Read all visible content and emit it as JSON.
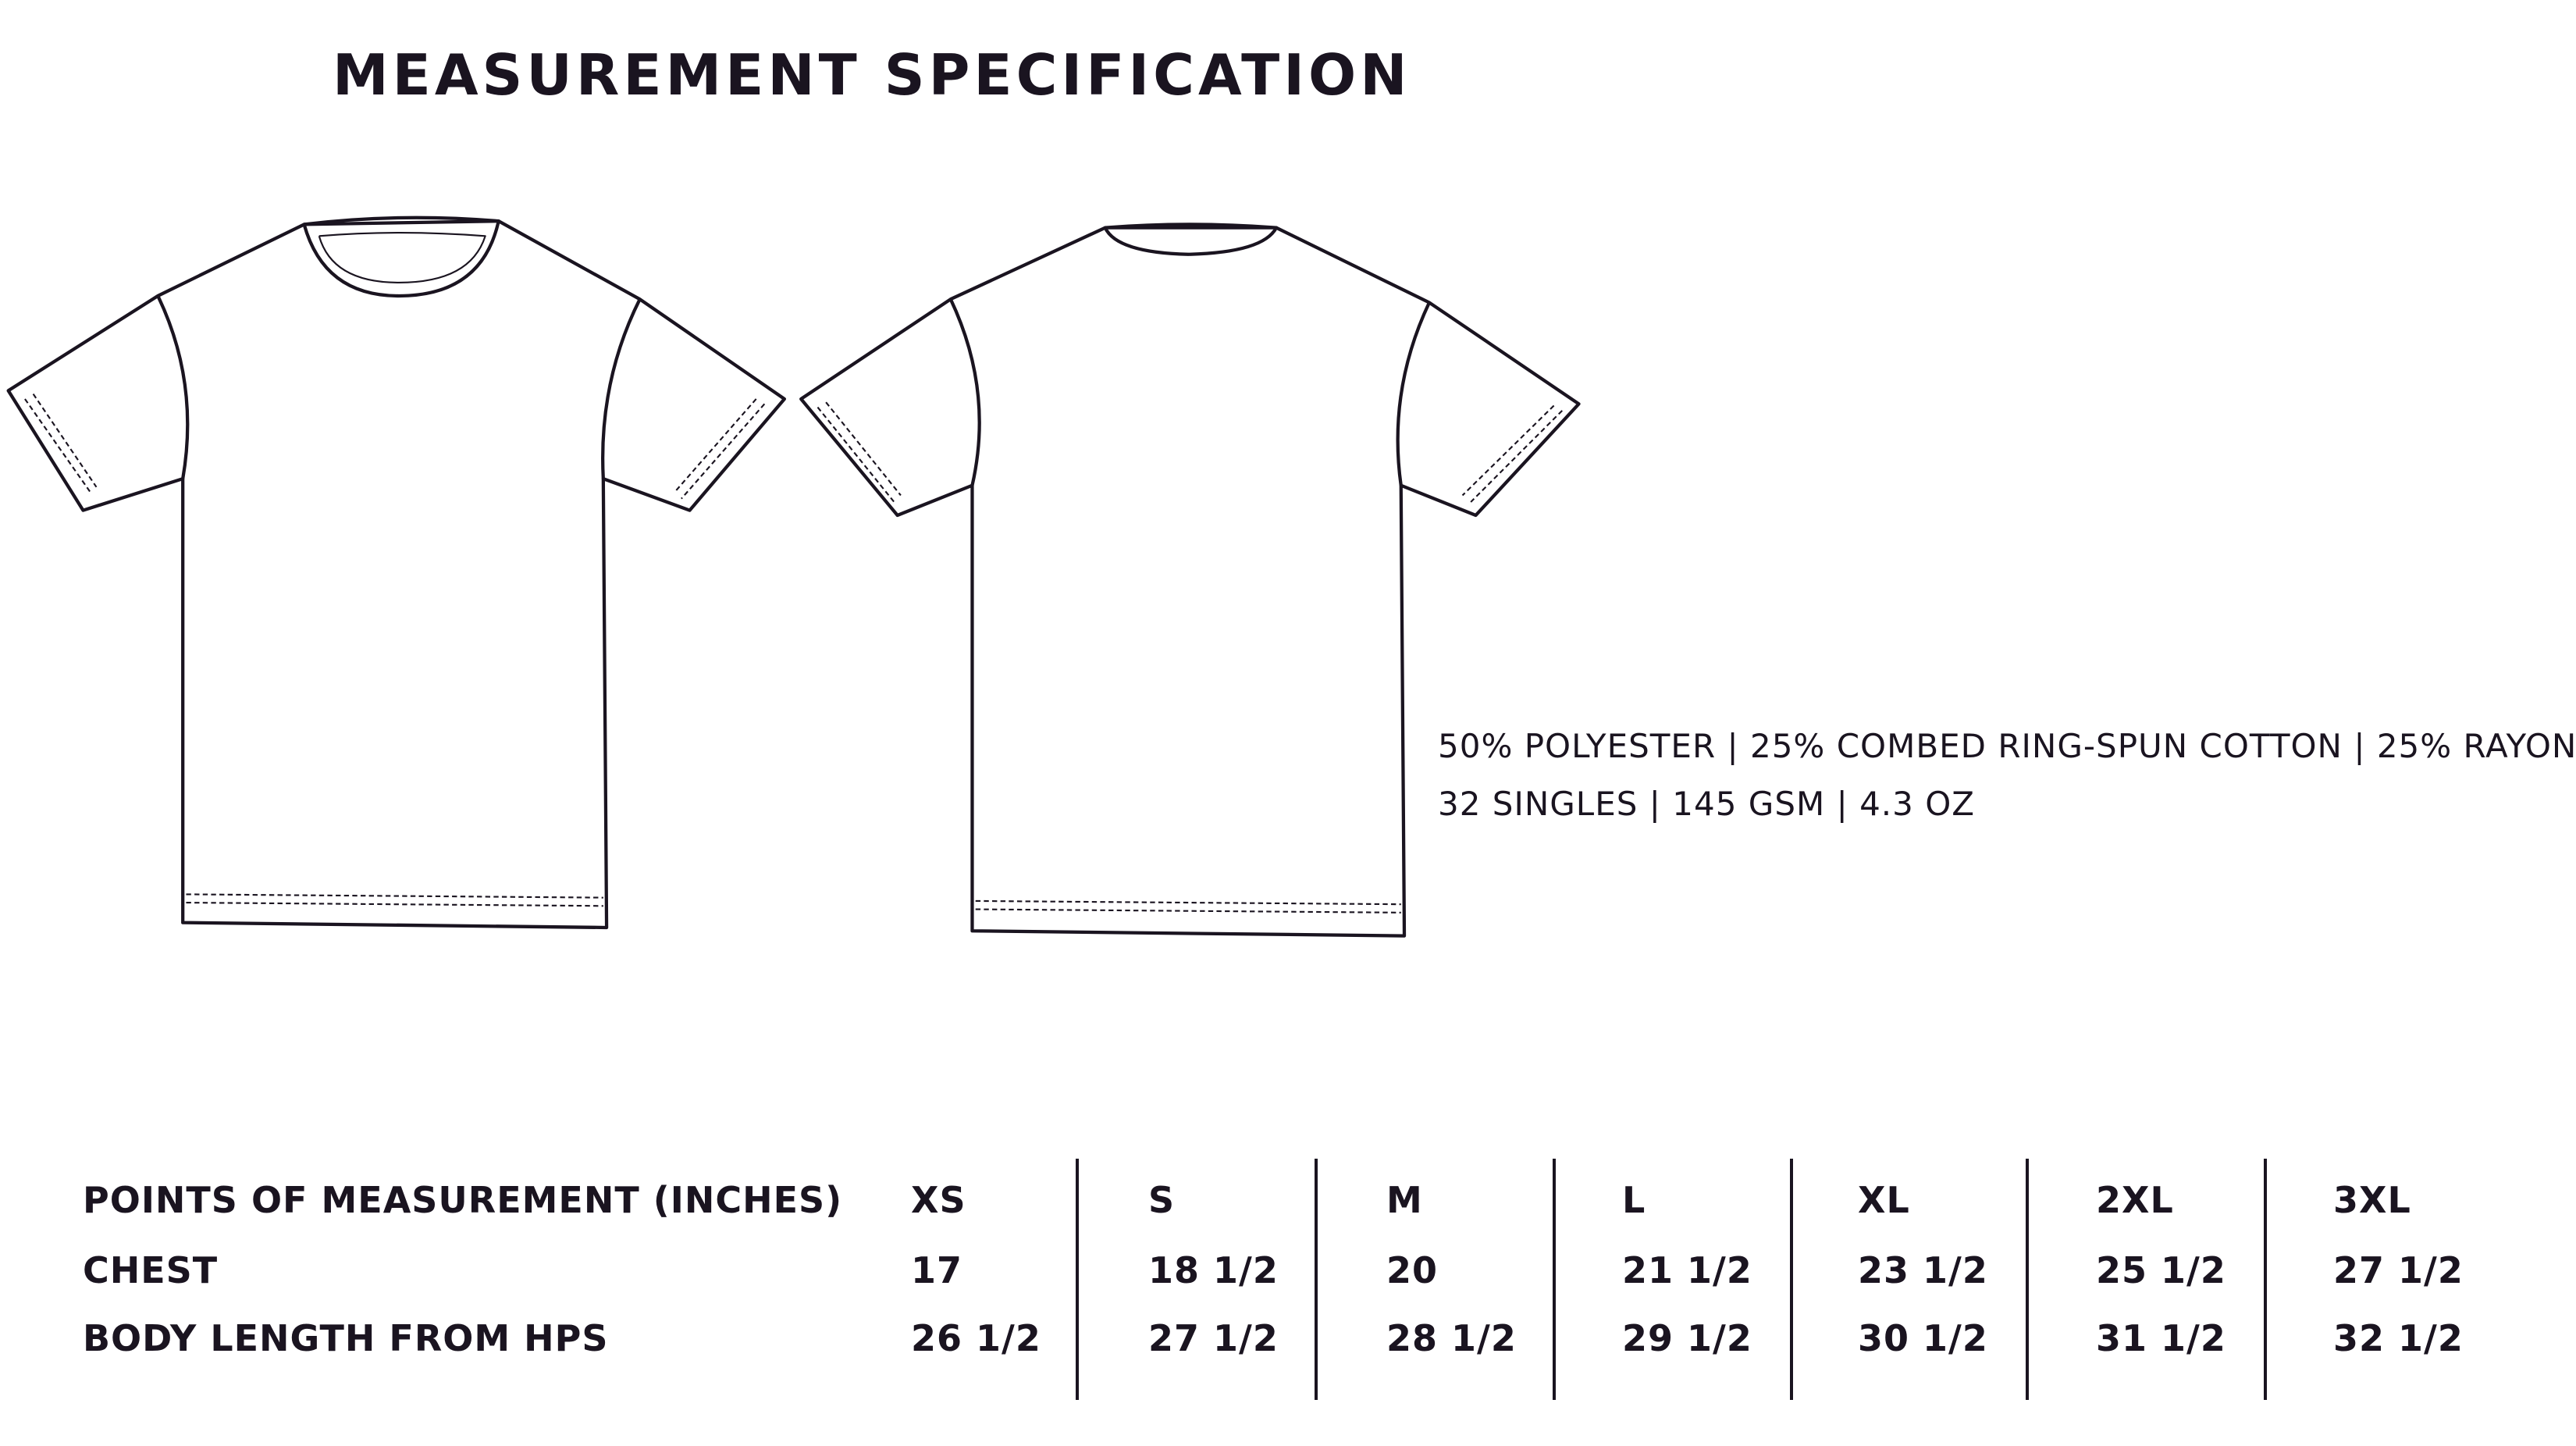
{
  "header": {
    "title": "MEASUREMENT SPECIFICATION"
  },
  "specs": [
    "50% POLYESTER | 25% COMBED RING-SPUN COTTON | 25% RAYON",
    "32 SINGLES | 145 GSM | 4.3 OZ"
  ],
  "table": {
    "columns": [
      "POINTS OF MEASUREMENT (INCHES)",
      "XS",
      "S",
      "M",
      "L",
      "XL",
      "2XL",
      "3XL"
    ],
    "rows": [
      [
        "CHEST",
        "17",
        "18 1/2",
        "20",
        "21 1/2",
        "23 1/2",
        "25 1/2",
        "27 1/2"
      ],
      [
        "BODY LENGTH FROM HPS",
        "26 1/2",
        "27 1/2",
        "28 1/2",
        "29 1/2",
        "30 1/2",
        "31 1/2",
        "32 1/2"
      ]
    ]
  }
}
